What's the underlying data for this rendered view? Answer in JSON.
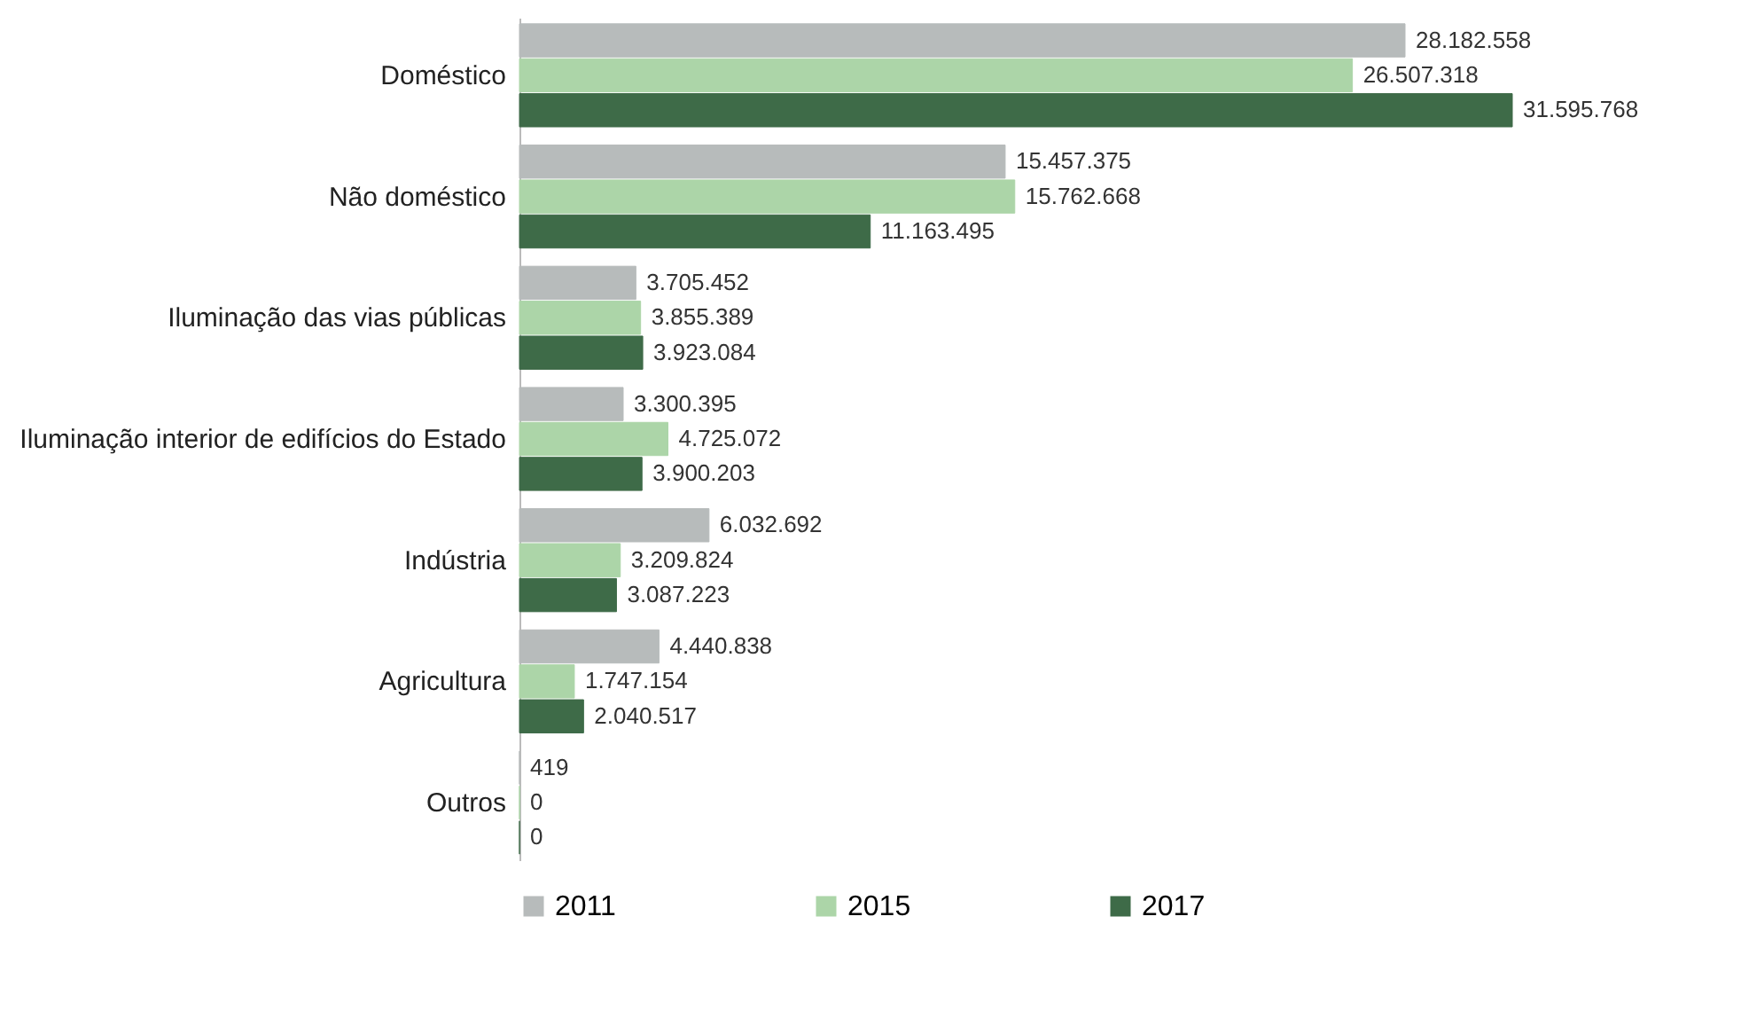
{
  "chart_data": {
    "type": "bar",
    "orientation": "horizontal",
    "categories": [
      "Doméstico",
      "Não doméstico",
      "Iluminação das vias públicas",
      "Iluminação interior de edifícios do Estado",
      "Indústria",
      "Agricultura",
      "Outros"
    ],
    "series": [
      {
        "name": "2011",
        "color": "#b7bbbb",
        "values": [
          28182558,
          15457375,
          3705452,
          3300395,
          6032692,
          4440838,
          419
        ],
        "value_labels": [
          "28.182.558",
          "15.457.375",
          "3.705.452",
          "3.300.395",
          "6.032.692",
          "4.440.838",
          "419"
        ]
      },
      {
        "name": "2015",
        "color": "#acd5a8",
        "values": [
          26507318,
          15762668,
          3855389,
          4725072,
          3209824,
          1747154,
          0
        ],
        "value_labels": [
          "26.507.318",
          "15.762.668",
          "3.855.389",
          "4.725.072",
          "3.209.824",
          "1.747.154",
          "0"
        ]
      },
      {
        "name": "2017",
        "color": "#3e6b48",
        "values": [
          31595768,
          11163495,
          3923084,
          3900203,
          3087223,
          2040517,
          0
        ],
        "value_labels": [
          "31.595.768",
          "11.163.495",
          "3.923.084",
          "3.900.203",
          "3.087.223",
          "2.040.517",
          "0"
        ]
      }
    ],
    "legend": "bottom",
    "grid": false
  }
}
